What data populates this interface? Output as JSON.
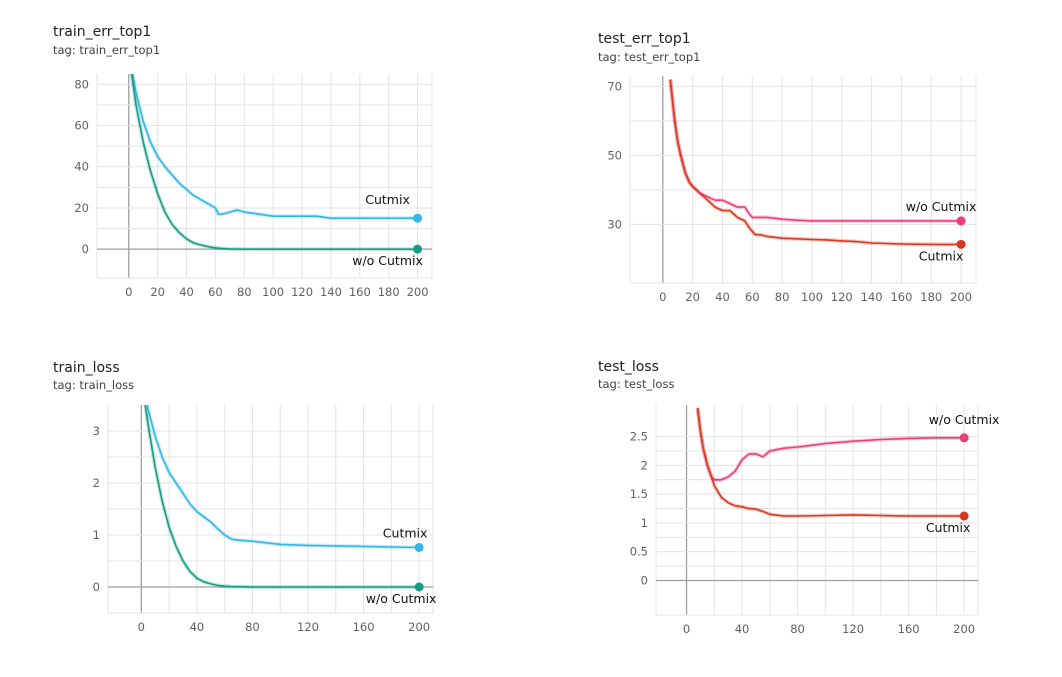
{
  "charts": [
    {
      "title": "train_err_top1",
      "tag": "tag: train_err_top1"
    },
    {
      "title": "test_err_top1",
      "tag": "tag: test_err_top1"
    },
    {
      "title": "train_loss",
      "tag": "tag: train_loss"
    },
    {
      "title": "test_loss",
      "tag": "tag: test_loss"
    }
  ],
  "colors": {
    "train_cutmix": "#34b6e8",
    "train_wo_cutmix": "#169d83",
    "test_wo_cutmix": "#ec3d7b",
    "test_cutmix": "#d9381e",
    "grid": "#e3e3e3",
    "axis": "#9e9e9e"
  },
  "chart_data": [
    {
      "type": "line",
      "title": "train_err_top1",
      "subtitle": "tag: train_err_top1",
      "grid": true,
      "xlim": [
        -22,
        210
      ],
      "ylim": [
        -14,
        85
      ],
      "xticks": [
        0,
        20,
        40,
        60,
        80,
        100,
        120,
        140,
        160,
        180,
        200
      ],
      "yticks": [
        0,
        20,
        40,
        60,
        80
      ],
      "series": [
        {
          "name": "Cutmix",
          "color_key": "train_cutmix",
          "x": [
            0,
            5,
            10,
            15,
            20,
            25,
            30,
            35,
            40,
            45,
            50,
            55,
            60,
            62,
            65,
            70,
            75,
            80,
            90,
            100,
            110,
            120,
            130,
            140,
            150,
            160,
            170,
            180,
            190,
            200
          ],
          "y": [
            95,
            76,
            62,
            52,
            45,
            40,
            36,
            32,
            29,
            26,
            24,
            22,
            20,
            17,
            17,
            18,
            19,
            18,
            17,
            16,
            16,
            16,
            16,
            15,
            15,
            15,
            15,
            15,
            15,
            15
          ]
        },
        {
          "name": "w/o Cutmix",
          "color_key": "train_wo_cutmix",
          "x": [
            0,
            5,
            10,
            15,
            20,
            25,
            30,
            35,
            40,
            45,
            50,
            55,
            60,
            65,
            70,
            80,
            100,
            120,
            140,
            160,
            180,
            200
          ],
          "y": [
            95,
            70,
            52,
            38,
            27,
            18,
            12,
            8,
            5,
            3,
            2,
            1.2,
            0.6,
            0.3,
            0.1,
            0,
            0,
            0,
            0,
            0,
            0,
            0
          ]
        }
      ]
    },
    {
      "type": "line",
      "title": "test_err_top1",
      "subtitle": "tag: test_err_top1",
      "grid": true,
      "xlim": [
        -22,
        210
      ],
      "ylim": [
        13,
        73
      ],
      "xticks": [
        0,
        20,
        40,
        60,
        80,
        100,
        120,
        140,
        160,
        180,
        200
      ],
      "yticks": [
        30,
        50,
        70
      ],
      "series": [
        {
          "name": "w/o Cutmix",
          "color_key": "test_wo_cutmix",
          "x": [
            5,
            8,
            10,
            12,
            15,
            18,
            20,
            25,
            30,
            35,
            40,
            45,
            50,
            55,
            58,
            60,
            62,
            65,
            70,
            80,
            90,
            100,
            120,
            140,
            160,
            180,
            200
          ],
          "y": [
            72,
            60,
            54,
            50,
            45,
            42,
            41,
            39,
            38,
            37,
            37,
            36,
            35,
            35,
            33,
            32,
            32,
            32,
            32,
            31.5,
            31.2,
            31,
            31,
            31,
            31,
            31,
            31
          ]
        },
        {
          "name": "Cutmix",
          "color_key": "test_cutmix",
          "x": [
            5,
            8,
            10,
            12,
            15,
            18,
            20,
            25,
            30,
            35,
            40,
            45,
            50,
            55,
            58,
            60,
            62,
            65,
            70,
            80,
            90,
            100,
            110,
            120,
            130,
            140,
            160,
            180,
            200
          ],
          "y": [
            72,
            60,
            54,
            50,
            45,
            42,
            41,
            39,
            37,
            35,
            34,
            34,
            32,
            31,
            29,
            28,
            27,
            27,
            26.5,
            26,
            25.8,
            25.6,
            25.5,
            25.2,
            25,
            24.6,
            24.3,
            24.2,
            24.2
          ]
        }
      ]
    },
    {
      "type": "line",
      "title": "train_loss",
      "subtitle": "tag: train_loss",
      "grid": true,
      "xlim": [
        -24,
        210
      ],
      "ylim": [
        -0.5,
        3.5
      ],
      "xticks": [
        0,
        40,
        80,
        120,
        160,
        200
      ],
      "yticks": [
        0,
        1,
        2,
        3
      ],
      "series": [
        {
          "name": "Cutmix",
          "color_key": "train_cutmix",
          "x": [
            0,
            5,
            10,
            15,
            20,
            25,
            30,
            35,
            40,
            45,
            50,
            55,
            60,
            65,
            70,
            80,
            90,
            100,
            120,
            140,
            160,
            180,
            200
          ],
          "y": [
            4.0,
            3.4,
            2.9,
            2.5,
            2.2,
            2.0,
            1.8,
            1.6,
            1.45,
            1.35,
            1.25,
            1.12,
            1.0,
            0.92,
            0.9,
            0.88,
            0.85,
            0.82,
            0.8,
            0.79,
            0.78,
            0.77,
            0.76
          ]
        },
        {
          "name": "w/o Cutmix",
          "color_key": "train_wo_cutmix",
          "x": [
            0,
            5,
            10,
            15,
            20,
            25,
            30,
            35,
            40,
            45,
            50,
            55,
            60,
            65,
            70,
            80,
            100,
            120,
            140,
            160,
            180,
            200
          ],
          "y": [
            4.0,
            3.1,
            2.3,
            1.65,
            1.15,
            0.78,
            0.5,
            0.3,
            0.17,
            0.1,
            0.06,
            0.03,
            0.015,
            0.008,
            0.005,
            0,
            0,
            0,
            0,
            0,
            0,
            0
          ]
        }
      ]
    },
    {
      "type": "line",
      "title": "test_loss",
      "subtitle": "tag: test_loss",
      "grid": true,
      "xlim": [
        -22,
        210
      ],
      "ylim": [
        -0.6,
        3.05
      ],
      "xticks": [
        0,
        40,
        80,
        120,
        160,
        200
      ],
      "yticks": [
        0,
        0.5,
        1,
        1.5,
        2,
        2.5
      ],
      "ytick_labels": [
        "0",
        "0.5",
        "1",
        "1.5",
        "2",
        "2.5"
      ],
      "series": [
        {
          "name": "w/o Cutmix",
          "color_key": "test_wo_cutmix",
          "x": [
            8,
            10,
            12,
            15,
            18,
            20,
            25,
            30,
            35,
            40,
            45,
            50,
            55,
            60,
            70,
            80,
            90,
            100,
            120,
            140,
            160,
            180,
            200
          ],
          "y": [
            3.0,
            2.6,
            2.3,
            2.0,
            1.8,
            1.75,
            1.75,
            1.8,
            1.9,
            2.1,
            2.2,
            2.2,
            2.15,
            2.25,
            2.3,
            2.32,
            2.35,
            2.38,
            2.42,
            2.45,
            2.47,
            2.48,
            2.48
          ]
        },
        {
          "name": "Cutmix",
          "color_key": "test_cutmix",
          "x": [
            8,
            10,
            12,
            15,
            18,
            20,
            25,
            30,
            35,
            40,
            45,
            50,
            55,
            60,
            70,
            80,
            100,
            120,
            140,
            160,
            180,
            200
          ],
          "y": [
            3.0,
            2.6,
            2.3,
            2.0,
            1.8,
            1.65,
            1.45,
            1.35,
            1.3,
            1.28,
            1.25,
            1.24,
            1.2,
            1.15,
            1.12,
            1.12,
            1.13,
            1.14,
            1.13,
            1.12,
            1.12,
            1.12
          ]
        }
      ]
    }
  ]
}
